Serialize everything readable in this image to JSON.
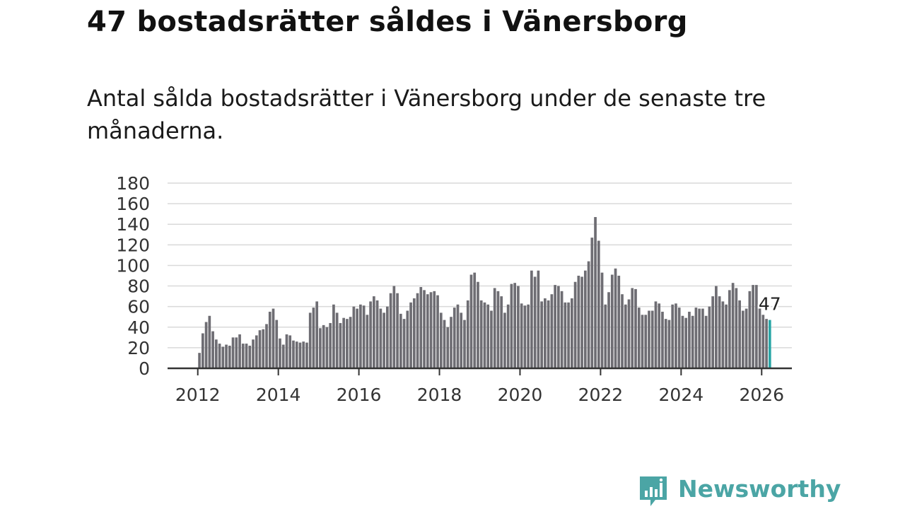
{
  "header": {
    "title": "47 bostadsrätter såldes i Vänersborg",
    "subtitle": "Antal sålda bostadsrätter i Vänersborg under de senaste tre månaderna."
  },
  "brand": {
    "name": "Newsworthy",
    "color": "#4ba5a5"
  },
  "chart_data": {
    "type": "bar",
    "title": "47 bostadsrätter såldes i Vänersborg",
    "subtitle": "Antal sålda bostadsrätter i Vänersborg under de senaste tre månaderna.",
    "xlabel": "",
    "ylabel": "",
    "x_start": 2012.0,
    "x_step_years": 0.0833,
    "xlim": [
      2011.25,
      2026.75
    ],
    "ylim": [
      0,
      180
    ],
    "y_ticks": [
      0,
      20,
      40,
      60,
      80,
      100,
      120,
      140,
      160,
      180
    ],
    "x_ticks": [
      2012,
      2014,
      2016,
      2018,
      2020,
      2022,
      2024,
      2026
    ],
    "grid": true,
    "bar_color": "#6e6d73",
    "highlight_color": "#2aa6a6",
    "highlight_index": 170,
    "annotation": {
      "label": "47",
      "index": 170
    },
    "values": [
      15,
      34,
      45,
      51,
      36,
      28,
      24,
      21,
      23,
      22,
      30,
      30,
      33,
      24,
      24,
      22,
      28,
      32,
      37,
      38,
      43,
      55,
      58,
      47,
      29,
      23,
      33,
      32,
      27,
      26,
      25,
      26,
      25,
      54,
      59,
      65,
      39,
      42,
      40,
      44,
      62,
      54,
      44,
      49,
      48,
      50,
      60,
      58,
      62,
      61,
      52,
      65,
      70,
      66,
      58,
      54,
      60,
      73,
      80,
      73,
      53,
      48,
      56,
      64,
      68,
      73,
      79,
      76,
      72,
      74,
      75,
      71,
      54,
      47,
      40,
      50,
      59,
      62,
      54,
      47,
      66,
      91,
      93,
      84,
      66,
      64,
      62,
      56,
      78,
      75,
      70,
      54,
      62,
      82,
      83,
      80,
      63,
      61,
      62,
      95,
      89,
      95,
      65,
      68,
      66,
      72,
      81,
      80,
      75,
      64,
      64,
      68,
      84,
      90,
      89,
      95,
      104,
      127,
      147,
      124,
      93,
      62,
      74,
      91,
      97,
      90,
      72,
      62,
      67,
      78,
      77,
      59,
      52,
      52,
      56,
      56,
      65,
      63,
      55,
      48,
      47,
      62,
      63,
      59,
      51,
      49,
      55,
      51,
      59,
      58,
      58,
      51,
      60,
      70,
      80,
      70,
      65,
      62,
      76,
      83,
      78,
      66,
      56,
      58,
      75,
      81,
      81,
      62,
      52,
      48,
      47
    ]
  }
}
